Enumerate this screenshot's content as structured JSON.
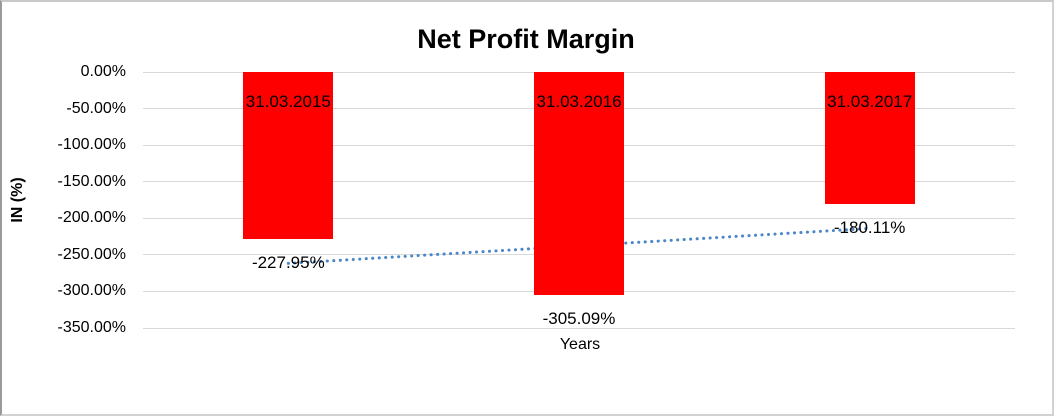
{
  "chart_data": {
    "type": "bar",
    "title": "Net Profit Margin",
    "xlabel": "Years",
    "ylabel": "IN (%)",
    "categories": [
      "31.03.2015",
      "31.03.2016",
      "31.03.2017"
    ],
    "values": [
      -227.95,
      -305.09,
      -180.11
    ],
    "value_labels": [
      "-227.95%",
      "-305.09%",
      "-180.11%"
    ],
    "y_tick_labels": [
      "0.00%",
      "-50.00%",
      "-100.00%",
      "-150.00%",
      "-200.00%",
      "-250.00%",
      "-300.00%",
      "-350.00%"
    ],
    "y_tick_values": [
      0,
      -50,
      -100,
      -150,
      -200,
      -250,
      -300,
      -350
    ],
    "ylim": [
      0,
      -350
    ],
    "grid": true,
    "legend_position": "none",
    "bar_color": "#ff0000",
    "gridline_color": "#d9d9d9",
    "trendline": {
      "type": "linear",
      "style": "dotted",
      "color": "#4a86c8"
    }
  }
}
